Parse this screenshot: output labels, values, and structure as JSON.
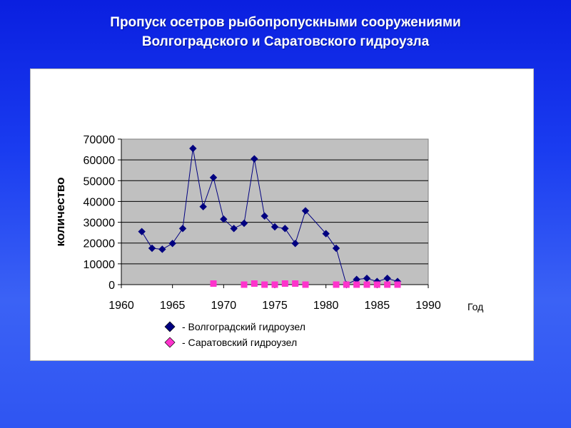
{
  "title": {
    "line1": "Пропуск осетров рыбопропускными сооружениями",
    "line2": "Волгоградского и Саратовского гидроузла"
  },
  "colors": {
    "background": "#1a3cf0",
    "plot_area": "#c0c0c0",
    "series1": "#000080",
    "series2": "#ff33cc"
  },
  "chart_data": {
    "type": "scatter",
    "xlabel": "Год",
    "ylabel": "количество",
    "xlim": [
      1960,
      1990
    ],
    "ylim": [
      0,
      70000
    ],
    "x_ticks": [
      1960,
      1965,
      1970,
      1975,
      1980,
      1985,
      1990
    ],
    "y_ticks": [
      0,
      10000,
      20000,
      30000,
      40000,
      50000,
      60000,
      70000
    ],
    "grid": "horizontal",
    "legend_position": "bottom",
    "series": [
      {
        "name": "- Волгоградский гидроузел",
        "marker": "diamond",
        "line": true,
        "color": "#000080",
        "points": [
          [
            1962,
            25500
          ],
          [
            1963,
            17500
          ],
          [
            1964,
            17000
          ],
          [
            1965,
            19800
          ],
          [
            1966,
            27000
          ],
          [
            1967,
            65500
          ],
          [
            1968,
            37500
          ],
          [
            1969,
            51500
          ],
          [
            1970,
            31500
          ],
          [
            1971,
            27000
          ],
          [
            1972,
            29500
          ],
          [
            1973,
            60500
          ],
          [
            1974,
            33000
          ],
          [
            1975,
            27800
          ],
          [
            1976,
            27000
          ],
          [
            1977,
            19800
          ],
          [
            1978,
            35500
          ],
          [
            1980,
            24500
          ],
          [
            1981,
            17500
          ],
          [
            1982,
            0
          ],
          [
            1983,
            2500
          ],
          [
            1984,
            3000
          ],
          [
            1985,
            1500
          ],
          [
            1986,
            3000
          ],
          [
            1987,
            1500
          ]
        ]
      },
      {
        "name": "- Саратовский гидроузел",
        "marker": "square",
        "line": false,
        "color": "#ff33cc",
        "points": [
          [
            1969,
            500
          ],
          [
            1972,
            0
          ],
          [
            1973,
            500
          ],
          [
            1974,
            0
          ],
          [
            1975,
            0
          ],
          [
            1976,
            500
          ],
          [
            1977,
            500
          ],
          [
            1978,
            0
          ],
          [
            1981,
            0
          ],
          [
            1982,
            0
          ],
          [
            1983,
            0
          ],
          [
            1984,
            0
          ],
          [
            1985,
            0
          ],
          [
            1986,
            0
          ],
          [
            1987,
            0
          ]
        ]
      }
    ]
  }
}
